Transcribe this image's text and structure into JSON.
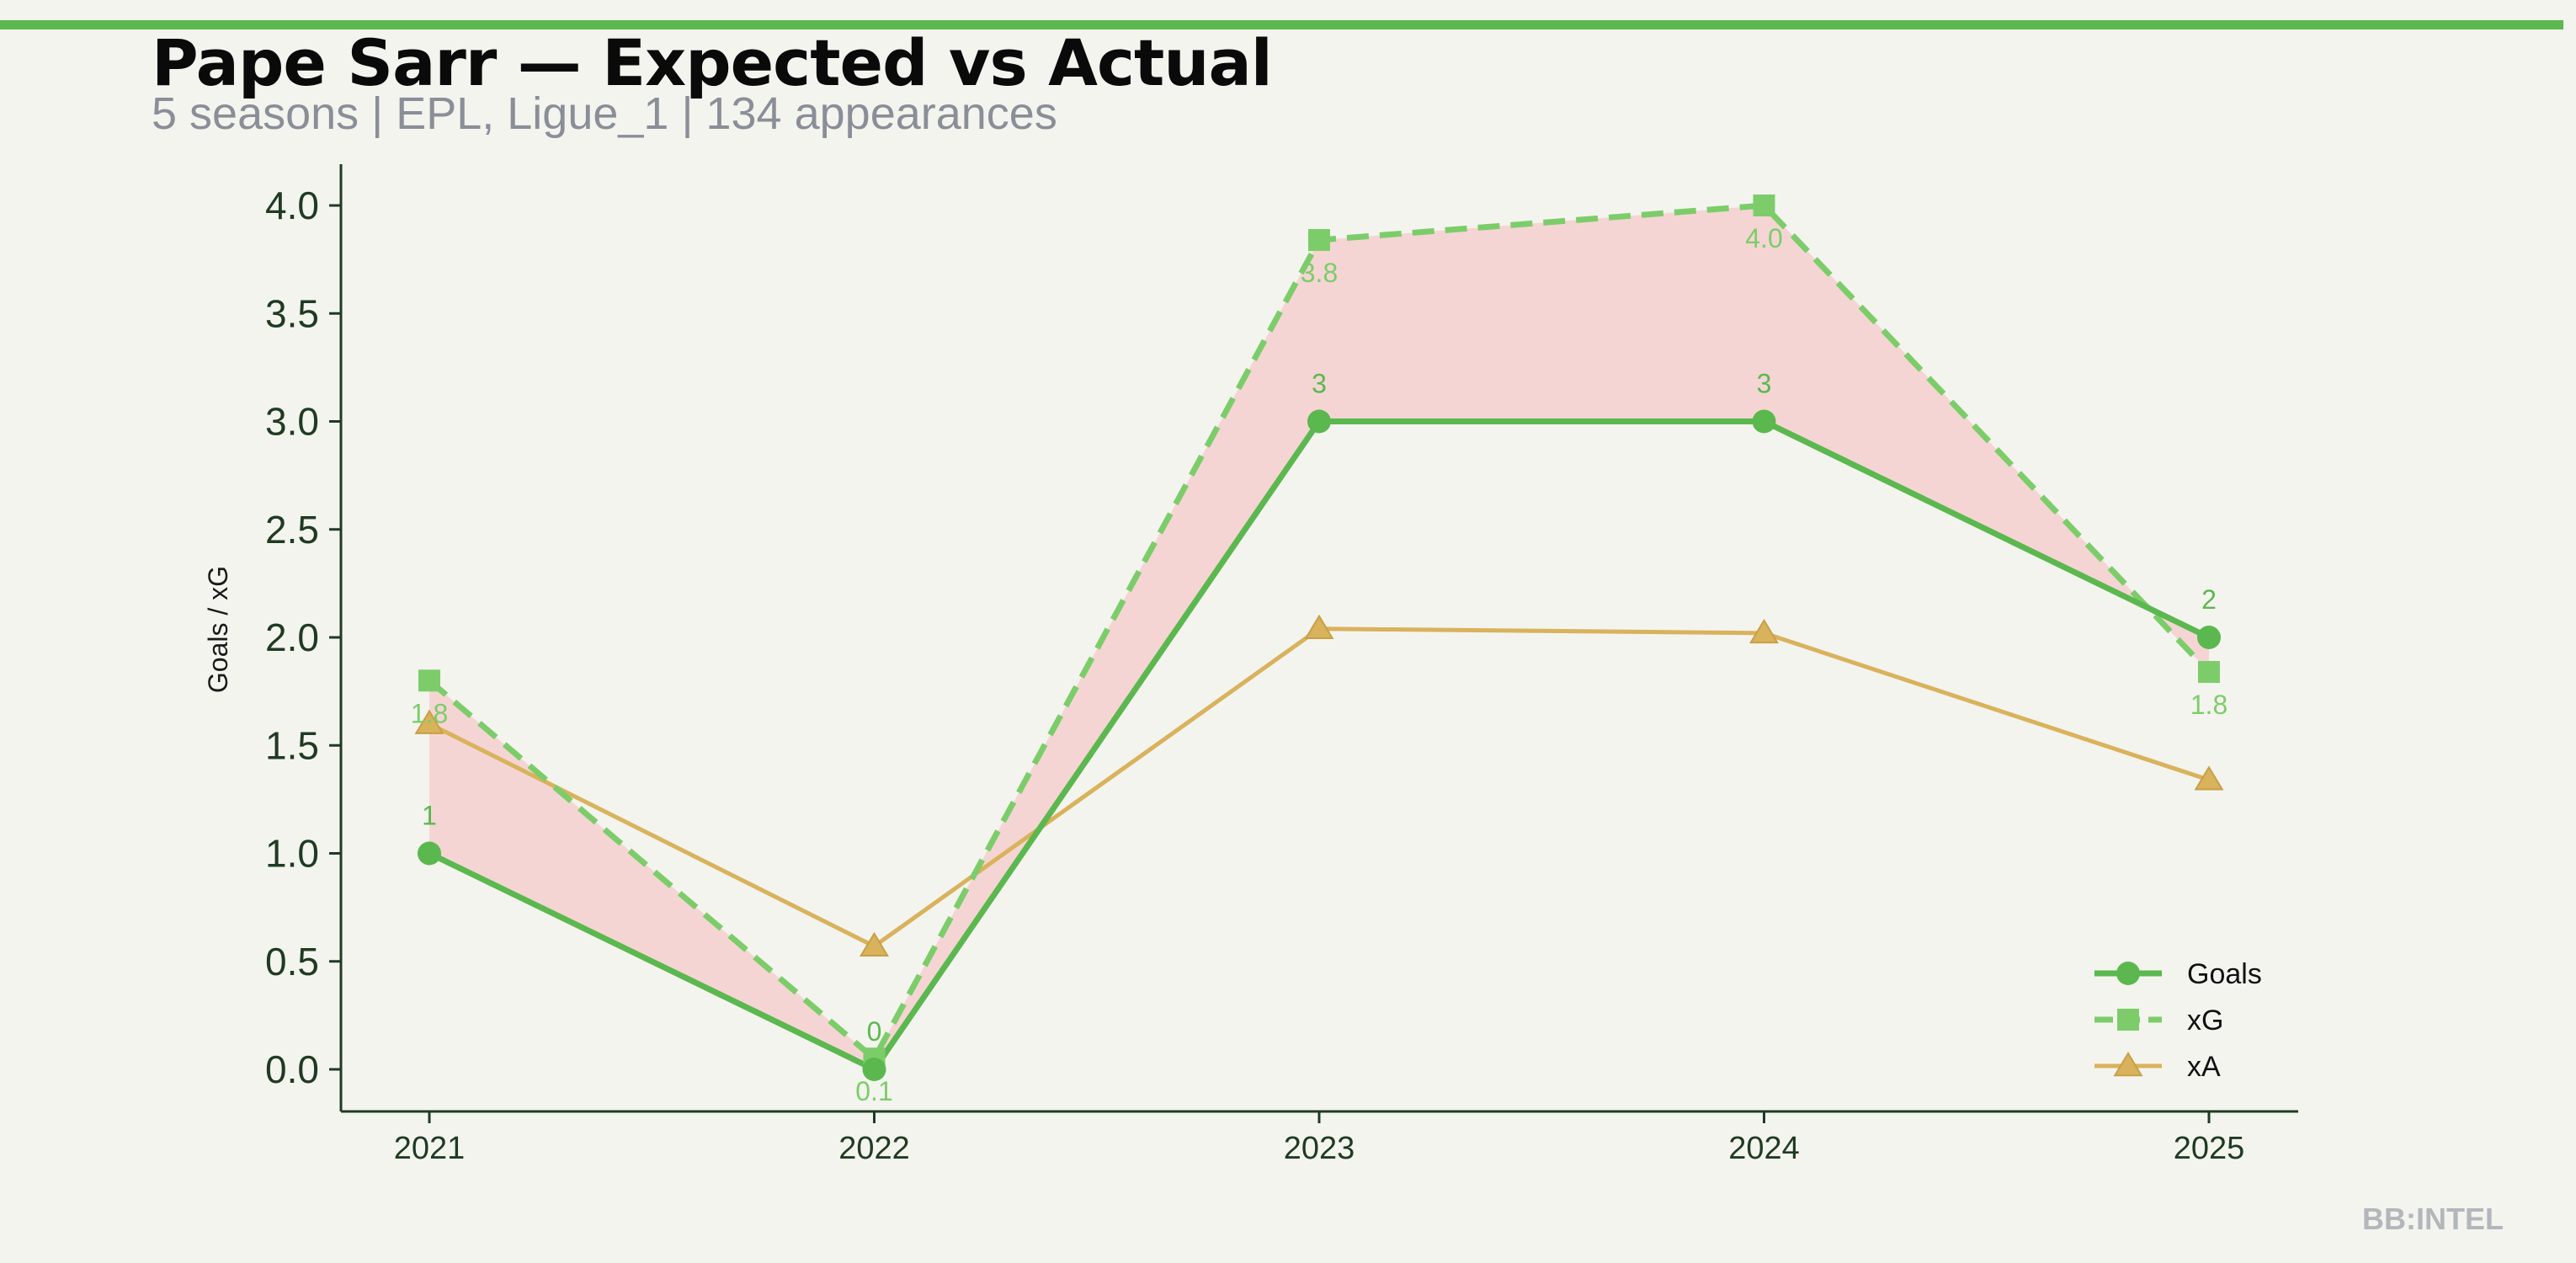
{
  "header": {
    "title": "Pape Sarr — Expected vs Actual",
    "subtitle": "5 seasons | EPL, Ligue_1 | 134 appearances"
  },
  "watermark": "BB:INTEL",
  "colors": {
    "accent": "#5bb84f",
    "goals": "#5bb84f",
    "xg": "#7ccd6a",
    "xa": "#d9b25c",
    "fill_gap": "#f5d5d3",
    "axis": "#1f3b22",
    "background": "#f4f4ef"
  },
  "chart_data": {
    "type": "line",
    "title": "Pape Sarr — Expected vs Actual",
    "subtitle": "5 seasons | EPL, Ligue_1 | 134 appearances",
    "xlabel": "",
    "ylabel": "Goals / xG",
    "x": [
      "2021",
      "2022",
      "2023",
      "2024",
      "2025"
    ],
    "ylim": [
      -0.2,
      4.2
    ],
    "yticks": [
      "0.0",
      "0.5",
      "1.0",
      "1.5",
      "2.0",
      "2.5",
      "3.0",
      "3.5",
      "4.0"
    ],
    "ytick_values": [
      0,
      0.5,
      1,
      1.5,
      2,
      2.5,
      3,
      3.5,
      4
    ],
    "grid": false,
    "legend_position": "bottom-right",
    "fill_between": [
      "Goals",
      "xG"
    ],
    "series": [
      {
        "name": "Goals",
        "marker": "circle",
        "style": "solid",
        "values": [
          1,
          0,
          3,
          3,
          2
        ],
        "labels": [
          "1",
          "0",
          "3",
          "3",
          "2"
        ]
      },
      {
        "name": "xG",
        "marker": "square",
        "style": "dashed",
        "values": [
          1.8,
          0.05,
          3.84,
          4.0,
          1.84
        ],
        "labels": [
          "1.8",
          "0.1",
          "3.8",
          "4.0",
          "1.8"
        ]
      },
      {
        "name": "xA",
        "marker": "triangle",
        "style": "solid",
        "values": [
          1.6,
          0.57,
          2.04,
          2.02,
          1.34
        ]
      }
    ]
  }
}
